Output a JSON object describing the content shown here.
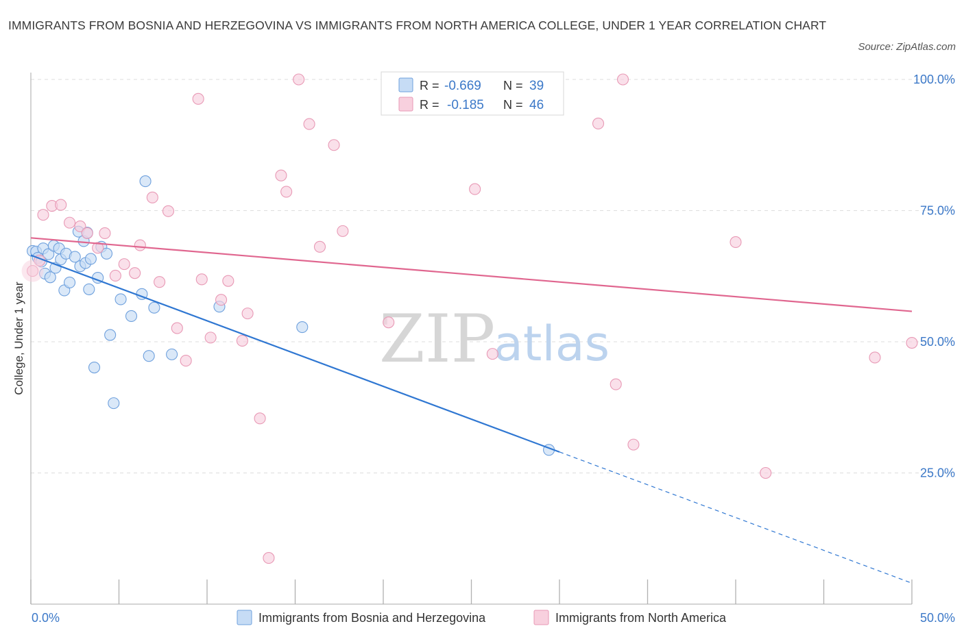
{
  "chart_data": {
    "type": "scatter",
    "title": "IMMIGRANTS FROM BOSNIA AND HERZEGOVINA VS IMMIGRANTS FROM NORTH AMERICA COLLEGE, UNDER 1 YEAR CORRELATION CHART",
    "source": "Source: ZipAtlas.com",
    "xlabel": "",
    "ylabel": "College, Under 1 year",
    "xlim": [
      0,
      50
    ],
    "ylim": [
      0,
      100
    ],
    "x_tick_labels": [
      "0.0%",
      "50.0%"
    ],
    "y_ticks": [
      25,
      50,
      75,
      100
    ],
    "y_tick_labels": [
      "25.0%",
      "50.0%",
      "75.0%",
      "100.0%"
    ],
    "grid": true,
    "watermark": {
      "zip": "ZIP",
      "atlas": "atlas"
    },
    "stats": [
      {
        "r_label": "R =",
        "r": "-0.669",
        "n_label": "N =",
        "n": "39"
      },
      {
        "r_label": "R =",
        "r": "-0.185",
        "n_label": "N =",
        "n": "46"
      }
    ],
    "series": [
      {
        "name": "Immigrants from Bosnia and Herzegovina",
        "color": "#6ea0dd",
        "fill": "#c6dcf5",
        "line_color": "#2f77d2",
        "trend": {
          "x": [
            0.0,
            30.0
          ],
          "y": [
            66.5,
            29.0
          ],
          "dash_to": [
            50.0,
            4.0
          ]
        },
        "points": [
          [
            0.1,
            67.3
          ],
          [
            0.3,
            67.2
          ],
          [
            0.4,
            66.0
          ],
          [
            0.6,
            65.3
          ],
          [
            0.7,
            67.8
          ],
          [
            0.8,
            63.0
          ],
          [
            1.0,
            66.7
          ],
          [
            1.1,
            62.3
          ],
          [
            1.3,
            68.3
          ],
          [
            1.4,
            64.1
          ],
          [
            1.6,
            67.8
          ],
          [
            1.7,
            65.7
          ],
          [
            1.9,
            59.8
          ],
          [
            2.0,
            66.8
          ],
          [
            2.2,
            61.3
          ],
          [
            2.5,
            66.2
          ],
          [
            2.7,
            71.0
          ],
          [
            2.8,
            64.4
          ],
          [
            3.0,
            69.2
          ],
          [
            3.1,
            65.0
          ],
          [
            3.3,
            60.0
          ],
          [
            3.4,
            65.8
          ],
          [
            3.6,
            45.1
          ],
          [
            3.8,
            62.2
          ],
          [
            4.0,
            68.1
          ],
          [
            4.3,
            66.8
          ],
          [
            4.5,
            51.3
          ],
          [
            4.7,
            38.3
          ],
          [
            5.1,
            58.1
          ],
          [
            5.7,
            54.9
          ],
          [
            6.3,
            59.1
          ],
          [
            6.5,
            80.6
          ],
          [
            6.7,
            47.3
          ],
          [
            7.0,
            56.5
          ],
          [
            8.0,
            47.6
          ],
          [
            10.7,
            56.7
          ],
          [
            3.2,
            70.8
          ],
          [
            15.4,
            52.8
          ],
          [
            29.4,
            29.4
          ]
        ]
      },
      {
        "name": "Immigrants from North America",
        "color": "#e899b5",
        "fill": "#f8d0de",
        "line_color": "#e0668f",
        "trend": {
          "x": [
            0.0,
            50.0
          ],
          "y": [
            69.8,
            55.8
          ]
        },
        "points": [
          [
            0.1,
            63.5
          ],
          [
            0.5,
            65.5
          ],
          [
            0.7,
            74.2
          ],
          [
            1.2,
            75.9
          ],
          [
            1.7,
            76.1
          ],
          [
            2.2,
            72.7
          ],
          [
            2.8,
            72.0
          ],
          [
            3.2,
            70.7
          ],
          [
            3.8,
            67.9
          ],
          [
            4.2,
            70.7
          ],
          [
            4.8,
            62.6
          ],
          [
            5.3,
            64.8
          ],
          [
            5.9,
            63.1
          ],
          [
            6.2,
            68.4
          ],
          [
            6.9,
            77.5
          ],
          [
            7.3,
            61.4
          ],
          [
            7.8,
            74.9
          ],
          [
            8.3,
            52.6
          ],
          [
            8.8,
            46.4
          ],
          [
            9.5,
            96.3
          ],
          [
            9.7,
            61.9
          ],
          [
            10.2,
            50.8
          ],
          [
            10.8,
            58.0
          ],
          [
            11.2,
            61.6
          ],
          [
            12.0,
            50.2
          ],
          [
            12.3,
            55.4
          ],
          [
            13.0,
            35.4
          ],
          [
            13.5,
            8.8
          ],
          [
            14.2,
            81.7
          ],
          [
            14.5,
            78.6
          ],
          [
            15.2,
            100.0
          ],
          [
            15.8,
            91.5
          ],
          [
            16.4,
            68.1
          ],
          [
            17.2,
            87.5
          ],
          [
            17.7,
            71.1
          ],
          [
            20.3,
            53.7
          ],
          [
            25.2,
            79.1
          ],
          [
            26.2,
            47.7
          ],
          [
            32.2,
            91.6
          ],
          [
            33.2,
            41.9
          ],
          [
            33.6,
            100.0
          ],
          [
            34.2,
            30.4
          ],
          [
            40.0,
            69.0
          ],
          [
            41.7,
            25.0
          ],
          [
            47.9,
            47.0
          ],
          [
            50.0,
            49.8
          ]
        ]
      }
    ]
  }
}
